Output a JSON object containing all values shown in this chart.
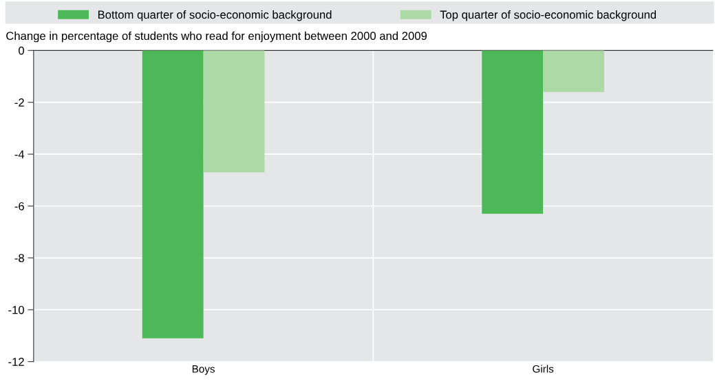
{
  "chart_data": {
    "type": "bar",
    "ylabel": "Change in percentage of students who read for enjoyment between 2000 and 2009",
    "categories": [
      "Boys",
      "Girls"
    ],
    "series": [
      {
        "name": "Bottom quarter of socio-economic background",
        "color": "#4db857",
        "values": [
          -11.1,
          -6.3
        ]
      },
      {
        "name": "Top quarter of socio-economic background",
        "color": "#acd9a5",
        "values": [
          -4.7,
          -1.6
        ]
      }
    ],
    "ylim": [
      -12,
      0
    ],
    "yticks": [
      -12,
      -10,
      -8,
      -6,
      -4,
      -2,
      0
    ],
    "grid": true,
    "legend": "top"
  }
}
